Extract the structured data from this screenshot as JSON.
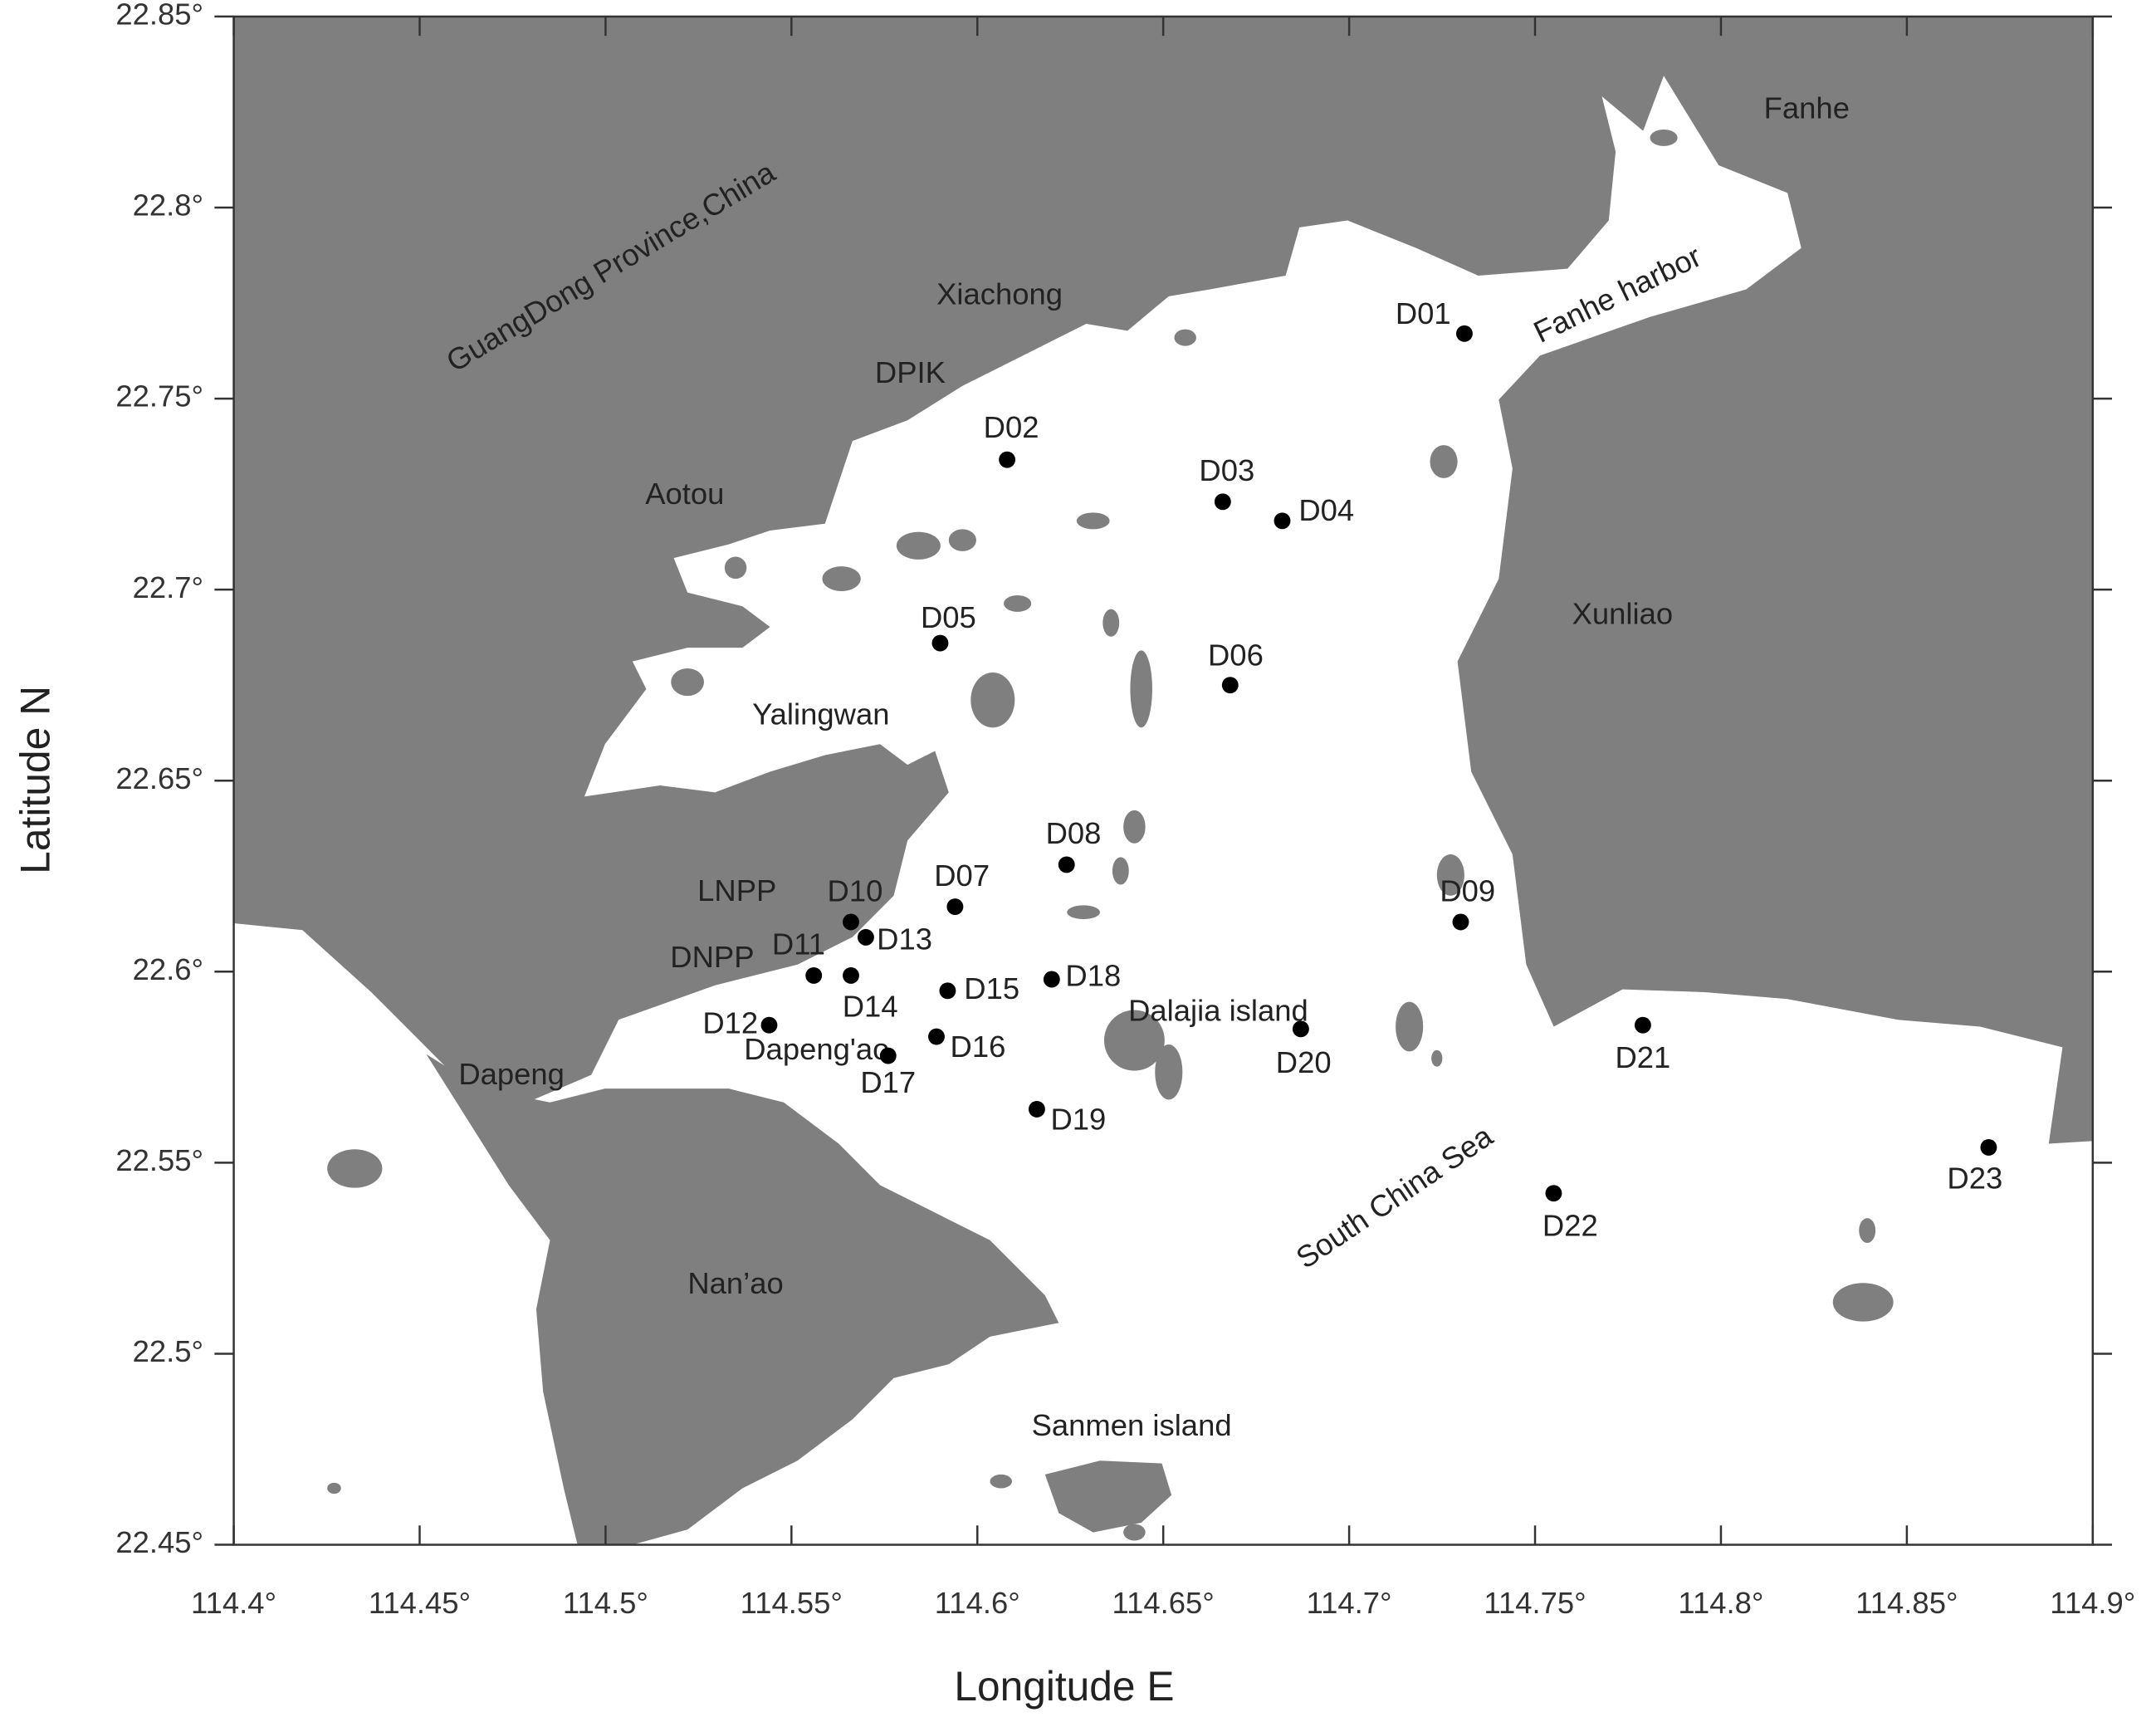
{
  "map": {
    "xlabel": "Longitude E",
    "ylabel": "Latitude N",
    "xlim": [
      114.4,
      114.9
    ],
    "ylim": [
      22.45,
      22.85
    ],
    "xticks": [
      {
        "value": 114.4,
        "label": "114.4°"
      },
      {
        "value": 114.45,
        "label": "114.45°"
      },
      {
        "value": 114.5,
        "label": "114.5°"
      },
      {
        "value": 114.55,
        "label": "114.55°"
      },
      {
        "value": 114.6,
        "label": "114.6°"
      },
      {
        "value": 114.65,
        "label": "114.65°"
      },
      {
        "value": 114.7,
        "label": "114.7°"
      },
      {
        "value": 114.75,
        "label": "114.75°"
      },
      {
        "value": 114.8,
        "label": "114.8°"
      },
      {
        "value": 114.85,
        "label": "114.85°"
      },
      {
        "value": 114.9,
        "label": "114.9°"
      }
    ],
    "yticks": [
      {
        "value": 22.45,
        "label": "22.45°"
      },
      {
        "value": 22.5,
        "label": "22.5°"
      },
      {
        "value": 22.55,
        "label": "22.55°"
      },
      {
        "value": 22.6,
        "label": "22.6°"
      },
      {
        "value": 22.65,
        "label": "22.65°"
      },
      {
        "value": 22.7,
        "label": "22.7°"
      },
      {
        "value": 22.75,
        "label": "22.75°"
      },
      {
        "value": 22.8,
        "label": "22.8°"
      },
      {
        "value": 22.85,
        "label": "22.85°"
      }
    ],
    "stations": [
      {
        "label": "D01",
        "lon": 114.731,
        "lat": 22.767
      },
      {
        "label": "D02",
        "lon": 114.608,
        "lat": 22.734
      },
      {
        "label": "D03",
        "lon": 114.666,
        "lat": 22.723
      },
      {
        "label": "D04",
        "lon": 114.682,
        "lat": 22.718
      },
      {
        "label": "D05",
        "lon": 114.59,
        "lat": 22.686
      },
      {
        "label": "D06",
        "lon": 114.668,
        "lat": 22.675
      },
      {
        "label": "D07",
        "lon": 114.594,
        "lat": 22.617
      },
      {
        "label": "D08",
        "lon": 114.624,
        "lat": 22.628
      },
      {
        "label": "D09",
        "lon": 114.73,
        "lat": 22.613
      },
      {
        "label": "D10",
        "lon": 114.566,
        "lat": 22.613
      },
      {
        "label": "D11",
        "lon": 114.556,
        "lat": 22.599
      },
      {
        "label": "D12",
        "lon": 114.544,
        "lat": 22.586
      },
      {
        "label": "D13",
        "lon": 114.57,
        "lat": 22.609
      },
      {
        "label": "D14",
        "lon": 114.566,
        "lat": 22.599
      },
      {
        "label": "D15",
        "lon": 114.592,
        "lat": 22.595
      },
      {
        "label": "D16",
        "lon": 114.589,
        "lat": 22.583
      },
      {
        "label": "D17",
        "lon": 114.576,
        "lat": 22.578
      },
      {
        "label": "D18",
        "lon": 114.62,
        "lat": 22.598
      },
      {
        "label": "D19",
        "lon": 114.616,
        "lat": 22.564
      },
      {
        "label": "D20",
        "lon": 114.687,
        "lat": 22.585
      },
      {
        "label": "D21",
        "lon": 114.779,
        "lat": 22.586
      },
      {
        "label": "D22",
        "lon": 114.755,
        "lat": 22.542
      },
      {
        "label": "D23",
        "lon": 114.872,
        "lat": 22.554
      }
    ],
    "places": [
      "GuangDong Province,China",
      "Fanhe",
      "Fanhe harbor",
      "Xiachong",
      "DPIK",
      "Aotou",
      "Xunliao",
      "Yalingwan",
      "LNPP",
      "DNPP",
      "Dapeng",
      "Dapeng'ao",
      "Dalajia island",
      "Nan’ao",
      "Sanmen island",
      "South China Sea"
    ]
  }
}
